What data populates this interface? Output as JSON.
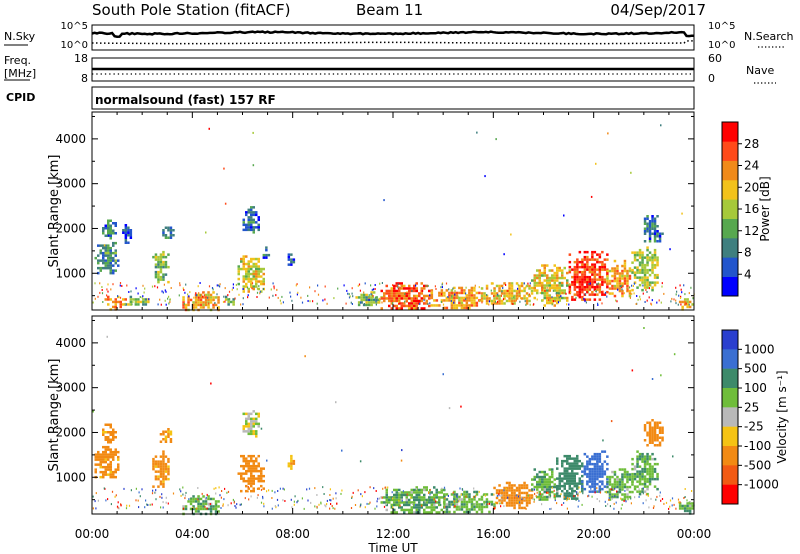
{
  "header": {
    "station": "South Pole Station (fitACF)",
    "beam": "Beam 11",
    "date": "04/Sep/2017"
  },
  "summary_panels": {
    "nsky": {
      "label": "N.Sky",
      "tick_top": "10^5",
      "tick_bottom": "10^0"
    },
    "nsearch": {
      "label": "N.Search",
      "tick_top": "10^5",
      "tick_bottom": "10^0"
    },
    "freq": {
      "label_line1": "Freq.",
      "label_line2": "[MHz]",
      "tick_top": "18",
      "tick_bottom": "8"
    },
    "nave": {
      "label": "Nave",
      "tick_top": "60",
      "tick_bottom": "0"
    },
    "cpid": {
      "label": "CPID",
      "value": "normalsound (fast) 157 RF"
    }
  },
  "axes": {
    "ylabel": "Slant Range [km]",
    "xlabel": "Time UT",
    "xticks": [
      "00:00",
      "04:00",
      "08:00",
      "12:00",
      "16:00",
      "20:00",
      "00:00"
    ],
    "yticks": [
      "1000",
      "2000",
      "3000",
      "4000"
    ]
  },
  "colorbars": {
    "power": {
      "label": "Power [dB]",
      "ticks": [
        "4",
        "8",
        "12",
        "16",
        "20",
        "24",
        "28"
      ],
      "colors": [
        "#0000ff",
        "#2255cc",
        "#3f7f7f",
        "#57a84f",
        "#a6c93a",
        "#f2c21b",
        "#f08a1a",
        "#ff4a1a",
        "#ff0000"
      ]
    },
    "velocity": {
      "label": "Velocity [m s⁻¹]",
      "ticks": [
        "1000",
        "500",
        "100",
        "25",
        "-25",
        "-100",
        "-500",
        "-1000"
      ],
      "colors": [
        "#2a3fcf",
        "#3a6fd2",
        "#3d8a6a",
        "#6fbd3a",
        "#b9b9b9",
        "#f5c313",
        "#f28a13",
        "#f25a13",
        "#ff0000"
      ]
    }
  },
  "chart_data": [
    {
      "type": "heatmap",
      "title": "Power",
      "xlabel": "Time UT",
      "ylabel": "Slant Range [km]",
      "colorbar_label": "Power [dB]",
      "xlim": [
        0,
        24
      ],
      "ylim": [
        180,
        4600
      ],
      "clim": [
        0,
        32
      ],
      "series": [
        {
          "t0": 0.1,
          "t1": 1.0,
          "r0": 1000,
          "r1": 1700,
          "v": 10
        },
        {
          "t0": 0.4,
          "t1": 0.9,
          "r0": 1800,
          "r1": 2200,
          "v": 8
        },
        {
          "t0": 0.5,
          "t1": 1.3,
          "r0": 200,
          "r1": 500,
          "v": 24
        },
        {
          "t0": 1.2,
          "t1": 1.5,
          "r0": 1700,
          "r1": 2100,
          "v": 6
        },
        {
          "t0": 1.3,
          "t1": 2.2,
          "r0": 300,
          "r1": 500,
          "v": 14
        },
        {
          "t0": 2.4,
          "t1": 3.0,
          "r0": 800,
          "r1": 1500,
          "v": 14
        },
        {
          "t0": 2.7,
          "t1": 3.2,
          "r0": 1800,
          "r1": 2100,
          "v": 8
        },
        {
          "t0": 3.6,
          "t1": 5.0,
          "r0": 200,
          "r1": 600,
          "v": 22
        },
        {
          "t0": 5.2,
          "t1": 5.6,
          "r0": 300,
          "r1": 500,
          "v": 12
        },
        {
          "t0": 5.8,
          "t1": 6.8,
          "r0": 600,
          "r1": 1400,
          "v": 18
        },
        {
          "t0": 6.0,
          "t1": 6.6,
          "r0": 1900,
          "r1": 2500,
          "v": 8
        },
        {
          "t0": 6.8,
          "t1": 7.0,
          "r0": 1300,
          "r1": 1600,
          "v": 8
        },
        {
          "t0": 7.8,
          "t1": 8.0,
          "r0": 1100,
          "r1": 1500,
          "v": 6
        },
        {
          "t0": 10.5,
          "t1": 11.5,
          "r0": 300,
          "r1": 600,
          "v": 14
        },
        {
          "t0": 11.5,
          "t1": 13.5,
          "r0": 200,
          "r1": 800,
          "v": 26
        },
        {
          "t0": 13.5,
          "t1": 15.5,
          "r0": 200,
          "r1": 700,
          "v": 22
        },
        {
          "t0": 15.5,
          "t1": 17.5,
          "r0": 300,
          "r1": 800,
          "v": 20
        },
        {
          "t0": 17.5,
          "t1": 19.0,
          "r0": 300,
          "r1": 1200,
          "v": 18
        },
        {
          "t0": 19.0,
          "t1": 20.5,
          "r0": 400,
          "r1": 1500,
          "v": 28
        },
        {
          "t0": 20.5,
          "t1": 21.5,
          "r0": 500,
          "r1": 1300,
          "v": 22
        },
        {
          "t0": 21.5,
          "t1": 22.5,
          "r0": 600,
          "r1": 1600,
          "v": 16
        },
        {
          "t0": 22.0,
          "t1": 22.7,
          "r0": 1700,
          "r1": 2300,
          "v": 8
        },
        {
          "t0": 23.4,
          "t1": 23.9,
          "r0": 200,
          "r1": 500,
          "v": 20
        }
      ]
    },
    {
      "type": "heatmap",
      "title": "Velocity",
      "xlabel": "Time UT",
      "ylabel": "Slant Range [km]",
      "colorbar_label": "Velocity [m s⁻¹]",
      "xlim": [
        0,
        24
      ],
      "ylim": [
        180,
        4600
      ],
      "series": [
        {
          "t0": 0.1,
          "t1": 1.0,
          "r0": 1000,
          "r1": 1700,
          "v": -150
        },
        {
          "t0": 0.4,
          "t1": 0.9,
          "r0": 1800,
          "r1": 2200,
          "v": -150
        },
        {
          "t0": 2.4,
          "t1": 3.0,
          "r0": 800,
          "r1": 1600,
          "v": -150
        },
        {
          "t0": 2.7,
          "t1": 3.2,
          "r0": 1800,
          "r1": 2100,
          "v": -100
        },
        {
          "t0": 3.6,
          "t1": 5.0,
          "r0": 200,
          "r1": 600,
          "v": 80
        },
        {
          "t0": 5.8,
          "t1": 6.8,
          "r0": 700,
          "r1": 1500,
          "v": -200
        },
        {
          "t0": 6.0,
          "t1": 6.6,
          "r0": 1900,
          "r1": 2500,
          "v": 0
        },
        {
          "t0": 7.8,
          "t1": 8.0,
          "r0": 1200,
          "r1": 1500,
          "v": -80
        },
        {
          "t0": 11.5,
          "t1": 14.0,
          "r0": 200,
          "r1": 800,
          "v": 80
        },
        {
          "t0": 14.0,
          "t1": 16.0,
          "r0": 200,
          "r1": 700,
          "v": 80
        },
        {
          "t0": 16.0,
          "t1": 17.5,
          "r0": 300,
          "r1": 900,
          "v": -200
        },
        {
          "t0": 17.5,
          "t1": 18.5,
          "r0": 500,
          "r1": 1200,
          "v": 80
        },
        {
          "t0": 18.5,
          "t1": 19.5,
          "r0": 500,
          "r1": 1500,
          "v": 400
        },
        {
          "t0": 19.5,
          "t1": 20.5,
          "r0": 700,
          "r1": 1600,
          "v": 700
        },
        {
          "t0": 20.5,
          "t1": 21.5,
          "r0": 500,
          "r1": 1200,
          "v": 80
        },
        {
          "t0": 21.5,
          "t1": 22.5,
          "r0": 600,
          "r1": 1600,
          "v": 80
        },
        {
          "t0": 22.0,
          "t1": 22.7,
          "r0": 1700,
          "r1": 2300,
          "v": -200
        },
        {
          "t0": 23.4,
          "t1": 23.9,
          "r0": 200,
          "r1": 500,
          "v": 80
        }
      ]
    }
  ]
}
